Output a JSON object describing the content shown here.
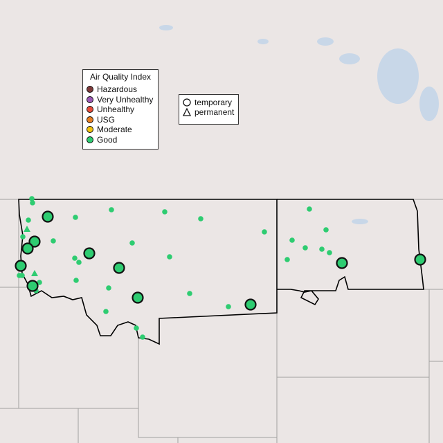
{
  "aqi_legend": {
    "title": "Air Quality Index",
    "categories": [
      {
        "label": "Hazardous",
        "color": "#7e3a3a"
      },
      {
        "label": "Very Unhealthy",
        "color": "#9b59b6"
      },
      {
        "label": "Unhealthy",
        "color": "#e74c3c"
      },
      {
        "label": "USG",
        "color": "#e67e22"
      },
      {
        "label": "Moderate",
        "color": "#f1c40f"
      },
      {
        "label": "Good",
        "color": "#2ecc71"
      }
    ]
  },
  "site_legend": {
    "items": [
      {
        "label": "temporary",
        "icon": "circle-icon"
      },
      {
        "label": "permanent",
        "icon": "triangle-icon"
      }
    ]
  },
  "colors": {
    "background": "#ebe6e5",
    "water": "#c8d7e8",
    "state_border": "#000000",
    "other_border": "#a0a0a0"
  }
}
